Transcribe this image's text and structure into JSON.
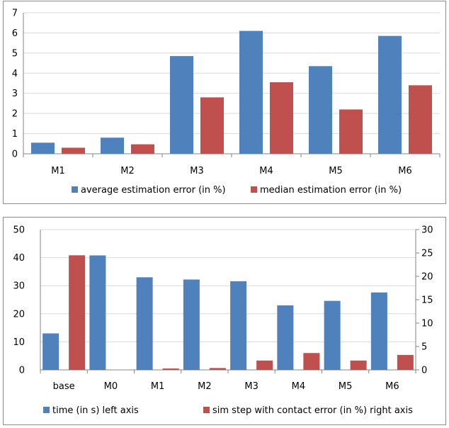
{
  "colors": {
    "blue": "#4f81bd",
    "red": "#c0504d",
    "grid": "#d9d9d9",
    "axis": "#868686"
  },
  "chart_data": [
    {
      "type": "bar",
      "title": "",
      "xlabel": "",
      "ylabel": "",
      "categories": [
        "M1",
        "M2",
        "M3",
        "M4",
        "M5",
        "M6"
      ],
      "ylim": [
        0,
        7
      ],
      "yticks": [
        "0",
        "1",
        "2",
        "3",
        "4",
        "5",
        "6",
        "7"
      ],
      "series": [
        {
          "name": "average estimation error (in %)",
          "values": [
            0.55,
            0.8,
            4.85,
            6.1,
            4.35,
            5.85
          ]
        },
        {
          "name": "median estimation error (in %)",
          "values": [
            0.3,
            0.47,
            2.8,
            3.55,
            2.2,
            3.4
          ]
        }
      ],
      "grid": true,
      "legend_position": "bottom"
    },
    {
      "type": "bar",
      "title": "",
      "xlabel": "",
      "ylabel": "",
      "categories": [
        "base",
        "M0",
        "M1",
        "M2",
        "M3",
        "M4",
        "M5",
        "M6"
      ],
      "ylim": [
        0,
        50
      ],
      "y2lim": [
        0,
        30
      ],
      "yticks": [
        "0",
        "10",
        "20",
        "30",
        "40",
        "50"
      ],
      "y2ticks": [
        "0",
        "5",
        "10",
        "15",
        "20",
        "25",
        "30"
      ],
      "series": [
        {
          "name": "time (in s) left axis",
          "axis": "left",
          "values": [
            13,
            40.8,
            33,
            32.2,
            31.6,
            23,
            24.6,
            27.6
          ]
        },
        {
          "name": "sim step with contact error (in %) right axis",
          "axis": "right",
          "values": [
            24.5,
            0,
            0.3,
            0.4,
            2,
            3.6,
            2,
            3.2
          ]
        }
      ],
      "grid": true,
      "legend_position": "bottom"
    }
  ]
}
